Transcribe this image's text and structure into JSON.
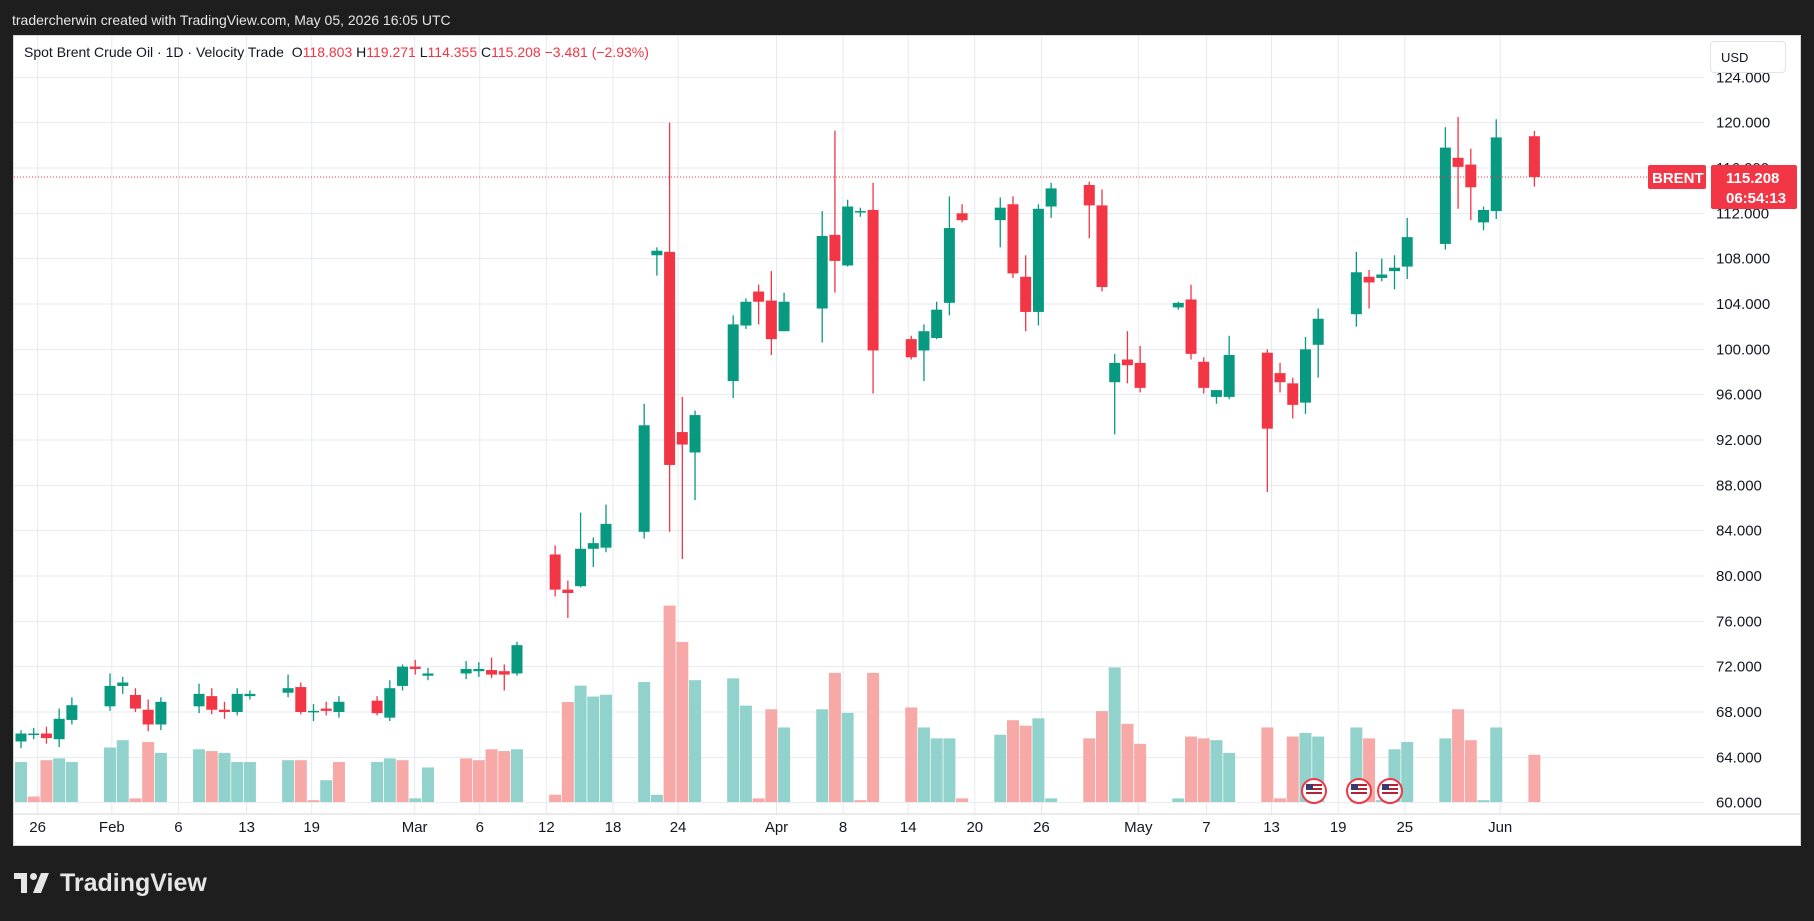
{
  "header": {
    "attribution": "tradercherwin created with TradingView.com, May 05, 2026 16:05 UTC"
  },
  "legend": {
    "symbol": "Spot Brent Crude Oil · 1D · Velocity Trade",
    "o_label": "O",
    "o_value": "118.803",
    "h_label": "H",
    "h_value": "119.271",
    "l_label": "L",
    "l_value": "114.355",
    "c_label": "C",
    "c_value": "115.208",
    "change": "−3.481 (−2.93%)"
  },
  "currency_button": "USD",
  "price_tag": {
    "symbol_label": "BRENT",
    "price": "115.208",
    "countdown": "06:54:13"
  },
  "footer": {
    "brand": "TradingView"
  },
  "colors": {
    "up": "#089981",
    "down": "#f23645",
    "vol_up": "#92d2cc",
    "vol_down": "#f7a9a7",
    "grid": "#e6e9ef"
  },
  "chart_data": {
    "type": "candlestick",
    "title": "Spot Brent Crude Oil · 1D · Velocity Trade",
    "ylim": [
      59,
      125
    ],
    "y_ticks": [
      "60.000",
      "64.000",
      "68.000",
      "72.000",
      "76.000",
      "80.000",
      "84.000",
      "88.000",
      "92.000",
      "96.000",
      "100.000",
      "104.000",
      "108.000",
      "112.000",
      "116.000",
      "120.000",
      "124.000"
    ],
    "x_ticks": [
      "26",
      "Feb",
      "6",
      "13",
      "19",
      "Mar",
      "6",
      "12",
      "18",
      "24",
      "Apr",
      "8",
      "14",
      "20",
      "26",
      "May",
      "7",
      "13",
      "19",
      "25",
      "Jun"
    ],
    "last_price": 115.208,
    "candles": [
      {
        "o": 65.4,
        "h": 66.4,
        "l": 64.8,
        "c": 66.1
      },
      {
        "o": 66.0,
        "h": 66.6,
        "l": 65.6,
        "c": 66.1
      },
      {
        "o": 66.1,
        "h": 66.7,
        "l": 65.2,
        "c": 65.7
      },
      {
        "o": 65.6,
        "h": 68.3,
        "l": 64.9,
        "c": 67.4
      },
      {
        "o": 67.3,
        "h": 69.3,
        "l": 66.9,
        "c": 68.6
      },
      {
        "o": 68.5,
        "h": 71.4,
        "l": 68.1,
        "c": 70.3
      },
      {
        "o": 70.3,
        "h": 71.1,
        "l": 69.6,
        "c": 70.6
      },
      {
        "o": 69.5,
        "h": 70.1,
        "l": 68.0,
        "c": 68.3
      },
      {
        "o": 68.2,
        "h": 69.1,
        "l": 66.3,
        "c": 66.9
      },
      {
        "o": 66.9,
        "h": 69.3,
        "l": 66.4,
        "c": 68.9
      },
      {
        "o": 68.5,
        "h": 70.5,
        "l": 67.9,
        "c": 69.6
      },
      {
        "o": 69.4,
        "h": 70.1,
        "l": 67.8,
        "c": 68.2
      },
      {
        "o": 68.2,
        "h": 68.9,
        "l": 67.4,
        "c": 68.0
      },
      {
        "o": 68.0,
        "h": 70.1,
        "l": 67.7,
        "c": 69.6
      },
      {
        "o": 69.4,
        "h": 69.9,
        "l": 69.1,
        "c": 69.6
      },
      {
        "o": 69.7,
        "h": 71.3,
        "l": 69.3,
        "c": 70.1
      },
      {
        "o": 70.2,
        "h": 70.6,
        "l": 67.8,
        "c": 68.0
      },
      {
        "o": 68.0,
        "h": 68.7,
        "l": 67.2,
        "c": 68.1
      },
      {
        "o": 68.3,
        "h": 68.9,
        "l": 67.7,
        "c": 68.1
      },
      {
        "o": 68.0,
        "h": 69.4,
        "l": 67.5,
        "c": 68.9
      },
      {
        "o": 69.0,
        "h": 69.4,
        "l": 67.7,
        "c": 67.9
      },
      {
        "o": 67.5,
        "h": 70.8,
        "l": 67.2,
        "c": 70.1
      },
      {
        "o": 70.3,
        "h": 72.2,
        "l": 69.9,
        "c": 72.0
      },
      {
        "o": 72.0,
        "h": 72.6,
        "l": 71.3,
        "c": 71.8
      },
      {
        "o": 71.2,
        "h": 71.9,
        "l": 70.8,
        "c": 71.4
      },
      {
        "o": 71.4,
        "h": 72.5,
        "l": 70.9,
        "c": 71.8
      },
      {
        "o": 71.6,
        "h": 72.4,
        "l": 71.1,
        "c": 71.8
      },
      {
        "o": 71.7,
        "h": 72.8,
        "l": 71.0,
        "c": 71.3
      },
      {
        "o": 71.6,
        "h": 72.2,
        "l": 69.9,
        "c": 71.3
      },
      {
        "o": 71.4,
        "h": 74.2,
        "l": 71.2,
        "c": 73.9
      },
      {
        "o": 81.9,
        "h": 82.7,
        "l": 78.2,
        "c": 78.8
      },
      {
        "o": 78.8,
        "h": 79.6,
        "l": 76.3,
        "c": 78.5
      },
      {
        "o": 79.1,
        "h": 85.6,
        "l": 79.0,
        "c": 82.4
      },
      {
        "o": 82.4,
        "h": 83.4,
        "l": 80.8,
        "c": 82.9
      },
      {
        "o": 82.5,
        "h": 86.3,
        "l": 82.1,
        "c": 84.6
      },
      {
        "o": 83.9,
        "h": 95.2,
        "l": 83.3,
        "c": 93.3
      },
      {
        "o": 108.3,
        "h": 109.0,
        "l": 106.5,
        "c": 108.7
      },
      {
        "o": 108.6,
        "h": 120.0,
        "l": 83.9,
        "c": 89.8
      },
      {
        "o": 92.7,
        "h": 95.8,
        "l": 81.5,
        "c": 91.6
      },
      {
        "o": 90.9,
        "h": 94.6,
        "l": 86.7,
        "c": 94.2
      },
      {
        "o": 97.2,
        "h": 103.0,
        "l": 95.7,
        "c": 102.2
      },
      {
        "o": 102.1,
        "h": 104.5,
        "l": 101.8,
        "c": 104.2
      },
      {
        "o": 105.1,
        "h": 105.7,
        "l": 102.2,
        "c": 104.2
      },
      {
        "o": 104.3,
        "h": 106.9,
        "l": 99.5,
        "c": 100.9
      },
      {
        "o": 101.6,
        "h": 105.0,
        "l": 101.6,
        "c": 104.2
      },
      {
        "o": 103.6,
        "h": 112.2,
        "l": 100.6,
        "c": 110.0
      },
      {
        "o": 110.1,
        "h": 119.3,
        "l": 105.0,
        "c": 107.8
      },
      {
        "o": 107.4,
        "h": 113.2,
        "l": 107.3,
        "c": 112.6
      },
      {
        "o": 112.2,
        "h": 112.5,
        "l": 111.7,
        "c": 112.2
      },
      {
        "o": 112.3,
        "h": 114.7,
        "l": 96.1,
        "c": 99.9
      },
      {
        "o": 100.9,
        "h": 101.2,
        "l": 99.1,
        "c": 99.3
      },
      {
        "o": 99.9,
        "h": 102.2,
        "l": 97.2,
        "c": 101.6
      },
      {
        "o": 101.0,
        "h": 104.2,
        "l": 100.9,
        "c": 103.5
      },
      {
        "o": 104.1,
        "h": 113.5,
        "l": 103.0,
        "c": 110.7
      },
      {
        "o": 112.0,
        "h": 112.8,
        "l": 111.2,
        "c": 111.4
      },
      {
        "o": 111.4,
        "h": 113.4,
        "l": 109.0,
        "c": 112.5
      },
      {
        "o": 112.8,
        "h": 113.5,
        "l": 106.3,
        "c": 106.7
      },
      {
        "o": 106.4,
        "h": 108.3,
        "l": 101.6,
        "c": 103.3
      },
      {
        "o": 103.3,
        "h": 112.8,
        "l": 102.1,
        "c": 112.4
      },
      {
        "o": 112.6,
        "h": 114.7,
        "l": 111.6,
        "c": 114.2
      },
      {
        "o": 114.5,
        "h": 114.8,
        "l": 109.8,
        "c": 112.7
      },
      {
        "o": 112.7,
        "h": 114.1,
        "l": 105.1,
        "c": 105.5
      },
      {
        "o": 97.1,
        "h": 99.6,
        "l": 92.5,
        "c": 98.8
      },
      {
        "o": 99.1,
        "h": 101.6,
        "l": 97.0,
        "c": 98.6
      },
      {
        "o": 98.8,
        "h": 100.3,
        "l": 96.2,
        "c": 96.6
      },
      {
        "o": 103.7,
        "h": 104.2,
        "l": 103.5,
        "c": 104.1
      },
      {
        "o": 104.4,
        "h": 105.7,
        "l": 99.1,
        "c": 99.6
      },
      {
        "o": 98.9,
        "h": 99.3,
        "l": 96.1,
        "c": 96.6
      },
      {
        "o": 95.8,
        "h": 96.4,
        "l": 95.2,
        "c": 96.4
      },
      {
        "o": 95.8,
        "h": 101.2,
        "l": 95.6,
        "c": 99.5
      },
      {
        "o": 99.7,
        "h": 100.0,
        "l": 87.4,
        "c": 93.0
      },
      {
        "o": 97.9,
        "h": 98.8,
        "l": 96.2,
        "c": 97.1
      },
      {
        "o": 97.0,
        "h": 97.5,
        "l": 93.9,
        "c": 95.1
      },
      {
        "o": 95.3,
        "h": 101.1,
        "l": 94.3,
        "c": 100.0
      },
      {
        "o": 100.4,
        "h": 103.6,
        "l": 97.5,
        "c": 102.7
      },
      {
        "o": 103.1,
        "h": 108.6,
        "l": 102.0,
        "c": 106.8
      },
      {
        "o": 106.4,
        "h": 107.0,
        "l": 103.6,
        "c": 105.9
      },
      {
        "o": 106.3,
        "h": 108.0,
        "l": 106.0,
        "c": 106.6
      },
      {
        "o": 106.9,
        "h": 108.3,
        "l": 105.3,
        "c": 107.2
      },
      {
        "o": 107.3,
        "h": 111.6,
        "l": 106.2,
        "c": 109.9
      },
      {
        "o": 109.3,
        "h": 119.6,
        "l": 108.8,
        "c": 117.8
      },
      {
        "o": 116.9,
        "h": 120.5,
        "l": 112.4,
        "c": 116.1
      },
      {
        "o": 116.3,
        "h": 117.7,
        "l": 111.4,
        "c": 114.3
      },
      {
        "o": 111.2,
        "h": 112.6,
        "l": 110.5,
        "c": 112.3
      },
      {
        "o": 112.2,
        "h": 120.3,
        "l": 111.5,
        "c": 118.7
      },
      {
        "o": 118.803,
        "h": 119.271,
        "l": 114.355,
        "c": 115.208
      }
    ],
    "volume": [
      {
        "v": 2.2,
        "up": true
      },
      {
        "v": 0.3,
        "up": false
      },
      {
        "v": 2.3,
        "up": false
      },
      {
        "v": 2.4,
        "up": true
      },
      {
        "v": 2.2,
        "up": true
      },
      {
        "v": 3.0,
        "up": true
      },
      {
        "v": 3.4,
        "up": true
      },
      {
        "v": 0.2,
        "up": false
      },
      {
        "v": 3.3,
        "up": false
      },
      {
        "v": 2.7,
        "up": true
      },
      {
        "v": 2.9,
        "up": true
      },
      {
        "v": 2.8,
        "up": false
      },
      {
        "v": 2.7,
        "up": true
      },
      {
        "v": 2.2,
        "up": true
      },
      {
        "v": 2.2,
        "up": true
      },
      {
        "v": 2.3,
        "up": true
      },
      {
        "v": 2.3,
        "up": false
      },
      {
        "v": 0.1,
        "up": false
      },
      {
        "v": 1.2,
        "up": true
      },
      {
        "v": 2.2,
        "up": false
      },
      {
        "v": 2.2,
        "up": true
      },
      {
        "v": 2.4,
        "up": true
      },
      {
        "v": 2.3,
        "up": false
      },
      {
        "v": 0.2,
        "up": true
      },
      {
        "v": 1.9,
        "up": true
      },
      {
        "v": 2.4,
        "up": false
      },
      {
        "v": 2.3,
        "up": false
      },
      {
        "v": 2.9,
        "up": false
      },
      {
        "v": 2.8,
        "up": false
      },
      {
        "v": 2.9,
        "up": true
      },
      {
        "v": 0.4,
        "up": false
      },
      {
        "v": 5.5,
        "up": false
      },
      {
        "v": 6.4,
        "up": true
      },
      {
        "v": 5.8,
        "up": true
      },
      {
        "v": 5.9,
        "up": true
      },
      {
        "v": 6.6,
        "up": true
      },
      {
        "v": 0.4,
        "up": true
      },
      {
        "v": 10.8,
        "up": false
      },
      {
        "v": 8.8,
        "up": false
      },
      {
        "v": 6.7,
        "up": true
      },
      {
        "v": 6.8,
        "up": true
      },
      {
        "v": 5.3,
        "up": true
      },
      {
        "v": 0.2,
        "up": false
      },
      {
        "v": 5.1,
        "up": false
      },
      {
        "v": 4.1,
        "up": true
      },
      {
        "v": 5.1,
        "up": true
      },
      {
        "v": 7.1,
        "up": false
      },
      {
        "v": 4.9,
        "up": true
      },
      {
        "v": 0.1,
        "up": false
      },
      {
        "v": 7.1,
        "up": false
      },
      {
        "v": 5.2,
        "up": false
      },
      {
        "v": 4.1,
        "up": true
      },
      {
        "v": 3.5,
        "up": true
      },
      {
        "v": 3.5,
        "up": true
      },
      {
        "v": 0.2,
        "up": false
      },
      {
        "v": 3.7,
        "up": true
      },
      {
        "v": 4.5,
        "up": false
      },
      {
        "v": 4.2,
        "up": false
      },
      {
        "v": 4.6,
        "up": true
      },
      {
        "v": 0.2,
        "up": true
      },
      {
        "v": 3.5,
        "up": false
      },
      {
        "v": 5.0,
        "up": false
      },
      {
        "v": 7.4,
        "up": true
      },
      {
        "v": 4.3,
        "up": false
      },
      {
        "v": 3.2,
        "up": false
      },
      {
        "v": 0.2,
        "up": true
      },
      {
        "v": 3.6,
        "up": false
      },
      {
        "v": 3.5,
        "up": false
      },
      {
        "v": 3.4,
        "up": true
      },
      {
        "v": 2.7,
        "up": true
      },
      {
        "v": 4.1,
        "up": false
      },
      {
        "v": 0.2,
        "up": false
      },
      {
        "v": 3.6,
        "up": false
      },
      {
        "v": 3.8,
        "up": true
      },
      {
        "v": 3.6,
        "up": true
      },
      {
        "v": 4.1,
        "up": true
      },
      {
        "v": 3.5,
        "up": false
      },
      {
        "v": 0.1,
        "up": true
      },
      {
        "v": 2.9,
        "up": true
      },
      {
        "v": 3.3,
        "up": true
      },
      {
        "v": 3.5,
        "up": true
      },
      {
        "v": 5.1,
        "up": false
      },
      {
        "v": 3.4,
        "up": false
      },
      {
        "v": 0.1,
        "up": true
      },
      {
        "v": 4.1,
        "up": true
      },
      {
        "v": 2.6,
        "up": false
      }
    ],
    "event_markers": [
      "us-flag-event",
      "us-flag-event",
      "us-flag-event"
    ]
  }
}
